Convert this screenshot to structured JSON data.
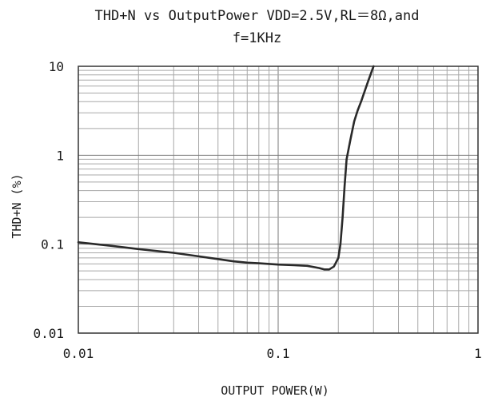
{
  "chart_data": {
    "type": "line",
    "title": "THD+N vs OutputPower VDD=2.5V,RL＝8Ω,and\nf=1KHz",
    "xlabel": "OUTPUT POWER(W)",
    "ylabel": "THD+N (%)",
    "x_scale": "log",
    "y_scale": "log",
    "xlim": [
      0.01,
      1
    ],
    "ylim": [
      0.01,
      10
    ],
    "x_ticks": [
      {
        "value": 0.01,
        "label": "0.01"
      },
      {
        "value": 0.1,
        "label": "0.1"
      },
      {
        "value": 1,
        "label": "1"
      }
    ],
    "y_ticks": [
      {
        "value": 10,
        "label": "10"
      },
      {
        "value": 1,
        "label": "1"
      },
      {
        "value": 0.1,
        "label": "0.1"
      },
      {
        "value": 0.01,
        "label": "0.01"
      }
    ],
    "grid": true,
    "series": [
      {
        "color": "#2a2a2a",
        "x": [
          0.01,
          0.015,
          0.02,
          0.03,
          0.04,
          0.05,
          0.06,
          0.07,
          0.08,
          0.1,
          0.12,
          0.14,
          0.16,
          0.17,
          0.18,
          0.19,
          0.2,
          0.205,
          0.21,
          0.215,
          0.22,
          0.23,
          0.24,
          0.25,
          0.26,
          0.28,
          0.3
        ],
        "y": [
          0.105,
          0.095,
          0.088,
          0.08,
          0.073,
          0.068,
          0.064,
          0.062,
          0.061,
          0.059,
          0.058,
          0.057,
          0.054,
          0.052,
          0.052,
          0.056,
          0.07,
          0.1,
          0.2,
          0.45,
          0.9,
          1.5,
          2.4,
          3.2,
          4.0,
          6.5,
          10
        ]
      }
    ]
  }
}
